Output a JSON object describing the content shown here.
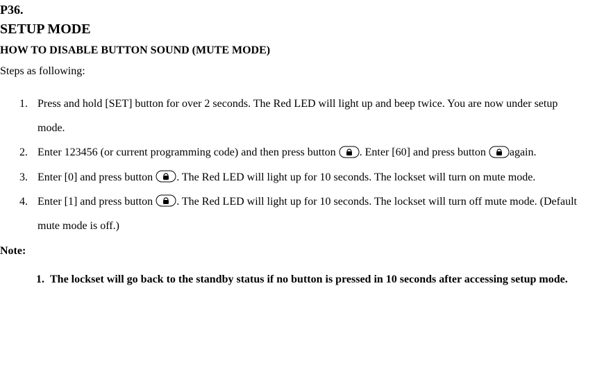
{
  "page_ref": "P36.",
  "title": "SETUP MODE",
  "subtitle": "HOW TO DISABLE BUTTON SOUND (MUTE MODE)",
  "lead": "Steps as following:",
  "steps": [
    {
      "segments": [
        {
          "kind": "text",
          "value": "Press and hold [SET] button for over 2 seconds. The Red LED will light up and beep twice. You are now under setup mode."
        }
      ]
    },
    {
      "segments": [
        {
          "kind": "text",
          "value": "Enter 123456 (or current programming code) and then press button "
        },
        {
          "kind": "lock-icon"
        },
        {
          "kind": "text",
          "value": ". Enter [60] and press button  "
        },
        {
          "kind": "lock-icon"
        },
        {
          "kind": "text",
          "value": "again."
        }
      ]
    },
    {
      "segments": [
        {
          "kind": "text",
          "value": "Enter [0] and press button "
        },
        {
          "kind": "lock-icon"
        },
        {
          "kind": "text",
          "value": ". The Red LED will light up for 10 seconds. The lockset will turn on mute mode."
        }
      ]
    },
    {
      "segments": [
        {
          "kind": "text",
          "value": "Enter [1] and press button "
        },
        {
          "kind": "lock-icon"
        },
        {
          "kind": "text",
          "value": ". The Red LED will light up for 10 seconds. The lockset will turn off mute mode. (Default mute mode is off.)"
        }
      ]
    }
  ],
  "note_label": "Note:",
  "notes": [
    "The lockset will go back to the standby status if no button is pressed in 10 seconds after accessing setup mode."
  ],
  "icons": {
    "lock-icon": "lock-button"
  },
  "style": {
    "font_family": "Times New Roman",
    "body_font_size_pt": 12,
    "heading_font_size_pt": 15,
    "text_color": "#000000",
    "background_color": "#ffffff",
    "icon_stroke": "#000000",
    "icon_fill": "#000000",
    "line_height": 2.2
  }
}
